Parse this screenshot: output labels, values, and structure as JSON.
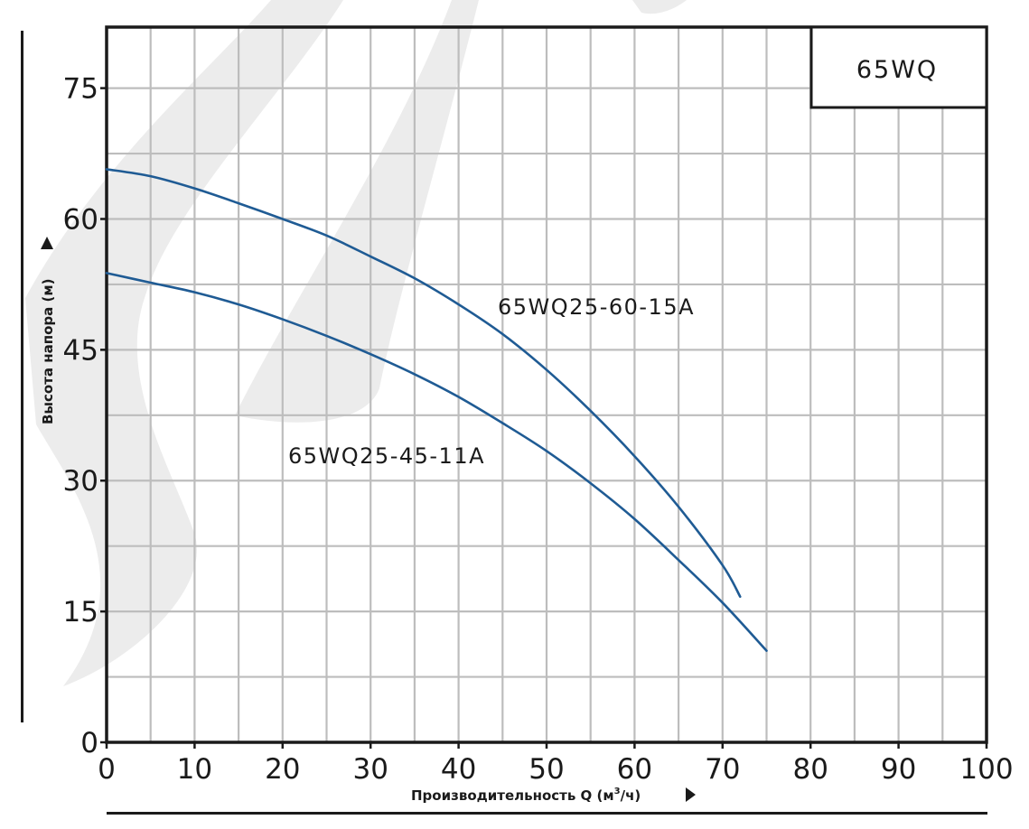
{
  "chart_data": {
    "type": "line",
    "title": "65WQ",
    "xlabel": "Производительность Q (м",
    "xlabel_sup": "3",
    "xlabel_suffix": "/ч)",
    "ylabel": "Высота напора (м)",
    "xlim": [
      0,
      100
    ],
    "ylim": [
      0,
      82
    ],
    "x_ticks": [
      0,
      10,
      20,
      30,
      40,
      50,
      60,
      70,
      80,
      90,
      100
    ],
    "y_ticks": [
      0,
      15,
      30,
      45,
      60,
      75
    ],
    "x_grid_step": 5,
    "y_grid_step": 7.5,
    "grid": true,
    "series": [
      {
        "name": "65WQ25-60-15A",
        "color": "#1f5b94",
        "x": [
          0,
          5,
          10,
          15,
          20,
          25,
          30,
          35,
          40,
          45,
          50,
          55,
          60,
          65,
          70,
          72
        ],
        "y": [
          65.7,
          64.9,
          63.5,
          61.8,
          60.0,
          58.1,
          55.7,
          53.2,
          50.2,
          46.8,
          42.7,
          38.0,
          32.8,
          27.0,
          20.3,
          16.7
        ]
      },
      {
        "name": "65WQ25-45-11A",
        "color": "#1f5b94",
        "x": [
          0,
          5,
          10,
          15,
          20,
          25,
          30,
          35,
          40,
          45,
          50,
          55,
          60,
          65,
          70,
          75
        ],
        "y": [
          53.8,
          52.7,
          51.6,
          50.2,
          48.5,
          46.6,
          44.5,
          42.2,
          39.6,
          36.6,
          33.4,
          29.7,
          25.6,
          20.9,
          16.0,
          10.5
        ]
      }
    ]
  }
}
